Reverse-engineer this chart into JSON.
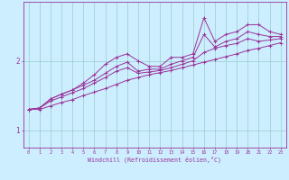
{
  "xlabel": "Windchill (Refroidissement éolien,°C)",
  "background_color": "#cceeff",
  "line_color": "#993399",
  "grid_color": "#99cccc",
  "xlim": [
    -0.5,
    23.5
  ],
  "ylim": [
    0.75,
    2.85
  ],
  "yticks": [
    1.0,
    2.0
  ],
  "xticks": [
    0,
    1,
    2,
    3,
    4,
    5,
    6,
    7,
    8,
    9,
    10,
    11,
    12,
    13,
    14,
    15,
    16,
    17,
    18,
    19,
    20,
    21,
    22,
    23
  ],
  "series": [
    {
      "x": [
        0,
        1,
        2,
        3,
        4,
        5,
        6,
        7,
        8,
        9,
        10,
        11,
        12,
        13,
        14,
        15,
        16,
        17,
        18,
        19,
        20,
        21,
        22,
        23
      ],
      "y": [
        1.3,
        1.32,
        1.45,
        1.52,
        1.58,
        1.68,
        1.8,
        1.95,
        2.05,
        2.1,
        2.0,
        1.92,
        1.92,
        2.05,
        2.05,
        2.1,
        2.62,
        2.28,
        2.38,
        2.42,
        2.52,
        2.52,
        2.42,
        2.38
      ]
    },
    {
      "x": [
        0,
        1,
        2,
        3,
        4,
        5,
        6,
        7,
        8,
        9,
        10,
        11,
        12,
        13,
        14,
        15,
        16,
        17,
        18,
        19,
        20,
        21,
        22,
        23
      ],
      "y": [
        1.3,
        1.32,
        1.45,
        1.52,
        1.58,
        1.65,
        1.72,
        1.82,
        1.92,
        1.98,
        1.85,
        1.88,
        1.88,
        1.95,
        2.0,
        2.05,
        2.38,
        2.2,
        2.28,
        2.32,
        2.42,
        2.38,
        2.35,
        2.35
      ]
    },
    {
      "x": [
        0,
        1,
        2,
        3,
        4,
        5,
        6,
        7,
        8,
        9,
        10,
        11,
        12,
        13,
        14,
        15,
        16,
        17,
        18,
        19,
        20,
        21,
        22,
        23
      ],
      "y": [
        1.3,
        1.32,
        1.42,
        1.48,
        1.54,
        1.6,
        1.68,
        1.76,
        1.85,
        1.9,
        1.82,
        1.84,
        1.86,
        1.9,
        1.95,
        2.0,
        2.12,
        2.18,
        2.22,
        2.25,
        2.32,
        2.28,
        2.3,
        2.32
      ]
    },
    {
      "x": [
        0,
        1,
        2,
        3,
        4,
        5,
        6,
        7,
        8,
        9,
        10,
        11,
        12,
        13,
        14,
        15,
        16,
        17,
        18,
        19,
        20,
        21,
        22,
        23
      ],
      "y": [
        1.3,
        1.3,
        1.35,
        1.4,
        1.44,
        1.5,
        1.55,
        1.6,
        1.66,
        1.72,
        1.76,
        1.8,
        1.83,
        1.86,
        1.9,
        1.94,
        1.98,
        2.02,
        2.06,
        2.1,
        2.15,
        2.18,
        2.22,
        2.26
      ]
    }
  ]
}
